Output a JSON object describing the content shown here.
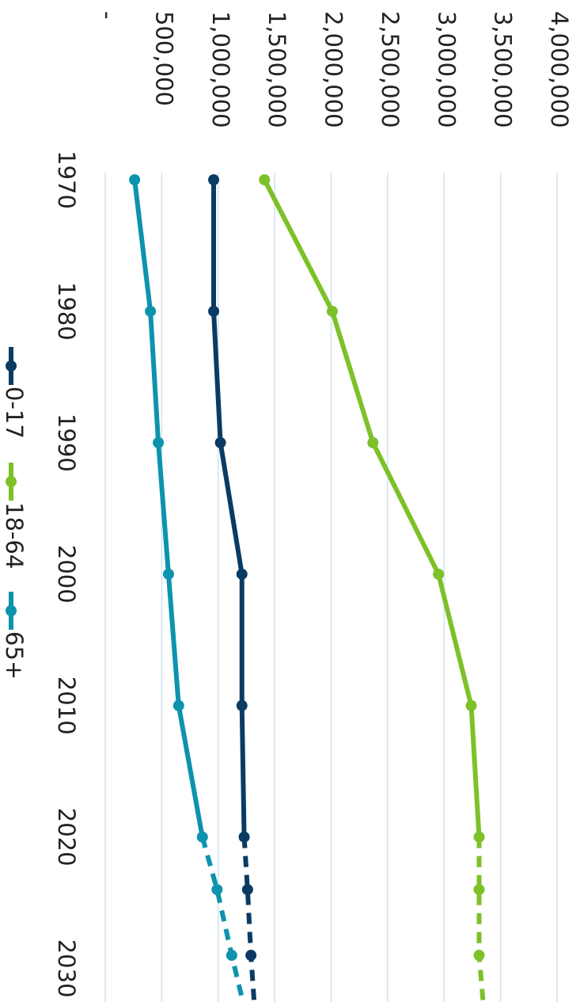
{
  "chart_data": {
    "type": "line",
    "orientation": "rotated 90 degrees clockwise",
    "x": [
      1970,
      1980,
      1990,
      2000,
      2010,
      2020,
      2024,
      2029,
      2034
    ],
    "x_ticks": [
      "1970",
      "1980",
      "1990",
      "2000",
      "2010",
      "2020",
      "2030"
    ],
    "y_ticks": [
      "-",
      "500,000",
      "1,000,000",
      "1,500,000",
      "2,000,000",
      "2,500,000",
      "3,000,000",
      "3,500,000",
      "4,000,000"
    ],
    "ylim": [
      0,
      4000000
    ],
    "grid": true,
    "legend_placement": "bottom",
    "projection_style": "dashed after 2020",
    "series": [
      {
        "name": "0-17",
        "color": "#0b3b63",
        "values": [
          960000,
          960000,
          1020000,
          1210000,
          1210000,
          1230000,
          1260000,
          1290000,
          1330000
        ]
      },
      {
        "name": "18-64",
        "color": "#7dc129",
        "values": [
          1410000,
          2010000,
          2370000,
          2950000,
          3240000,
          3310000,
          3310000,
          3310000,
          3360000
        ]
      },
      {
        "name": "65+",
        "color": "#0c93ae",
        "values": [
          260000,
          400000,
          470000,
          560000,
          650000,
          860000,
          990000,
          1120000,
          1260000
        ]
      }
    ]
  }
}
